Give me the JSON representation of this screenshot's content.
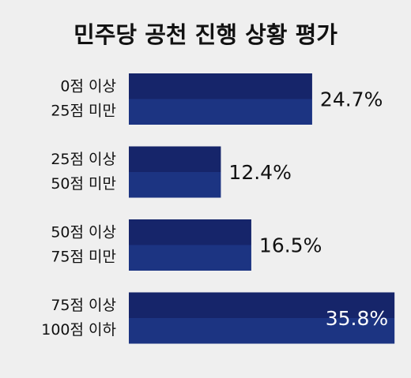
{
  "chart_data": {
    "type": "bar",
    "orientation": "horizontal",
    "title": "민주당 공천 진행 상황 평가",
    "categories": [
      [
        "0점 이상",
        "25점 미만"
      ],
      [
        "25점 이상",
        "50점 미만"
      ],
      [
        "50점 이상",
        "75점 미만"
      ],
      [
        "75점 이상",
        "100점 이하"
      ]
    ],
    "values": [
      24.7,
      12.4,
      16.5,
      35.8
    ],
    "value_labels": [
      "24.7%",
      "12.4%",
      "16.5%",
      "35.8%"
    ],
    "color": "#1b2c70"
  }
}
